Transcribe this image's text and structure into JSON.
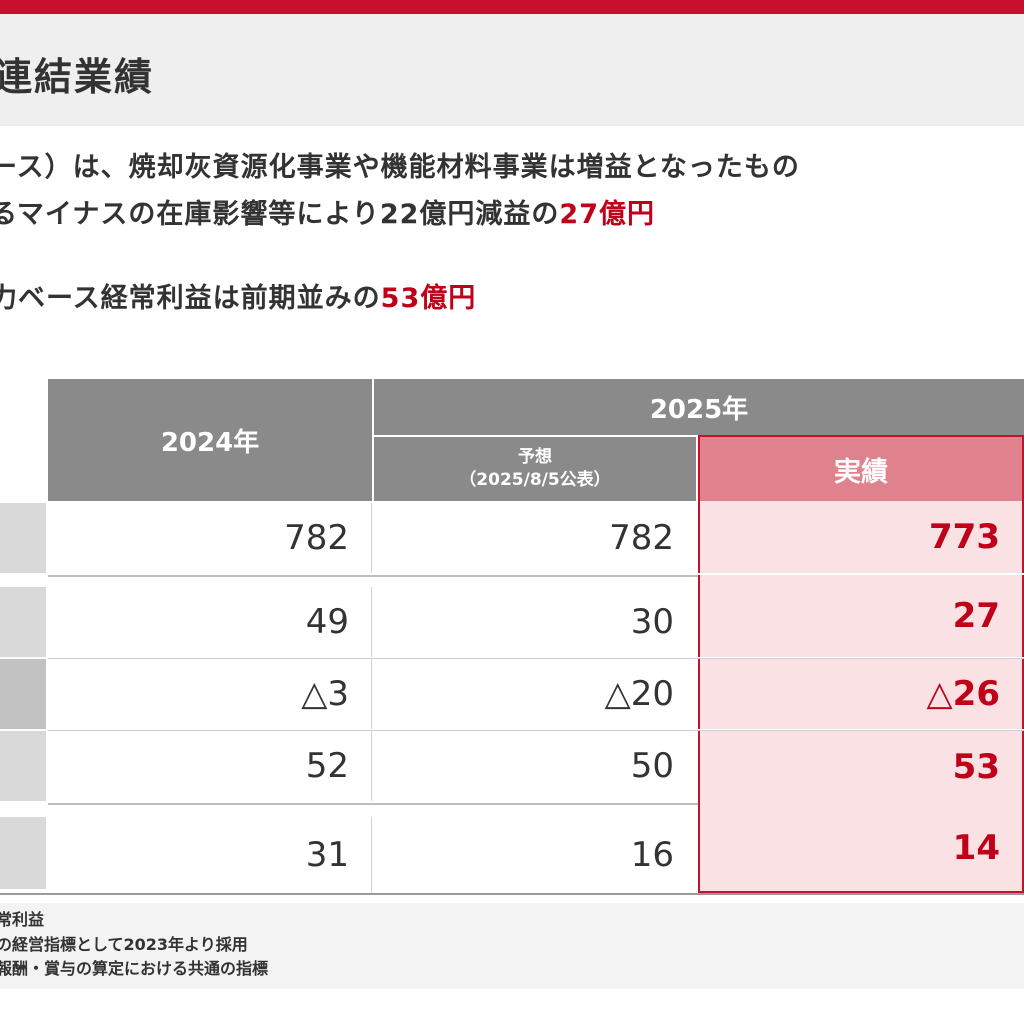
{
  "header": {
    "title": "連結業績"
  },
  "lead": {
    "line1": "ース）は、焼却灰資源化事業や機能材料事業は増益となったもの",
    "line2_text": "るマイナスの在庫影響等により22億円減益の",
    "line2_highlight": "27億円",
    "line3_text": "力ベース経常利益は前期並みの",
    "line3_highlight": "53億円"
  },
  "table": {
    "col_2024": "2024年",
    "col_2025": "2025年",
    "forecast_label": "予想",
    "forecast_date": "（2025/8/5公表）",
    "actual_label": "実績",
    "rows": [
      {
        "y2024": "782",
        "forecast": "782",
        "actual": "773"
      },
      {
        "y2024": "49",
        "forecast": "30",
        "actual": "27"
      },
      {
        "y2024": "△3",
        "forecast": "△20",
        "actual": "△26"
      },
      {
        "y2024": "52",
        "forecast": "50",
        "actual": "53"
      },
      {
        "y2024": "31",
        "forecast": "16",
        "actual": "14"
      }
    ]
  },
  "notes": {
    "n1": "常利益",
    "n2": "の経営指標として2023年より採用",
    "n3": "報酬・賞与の算定における共通の指標"
  },
  "colors": {
    "accent": "#c8102e",
    "header_gray": "#8a8a8a",
    "actual_header": "#e0828d",
    "actual_bg": "#f9e1e4"
  }
}
